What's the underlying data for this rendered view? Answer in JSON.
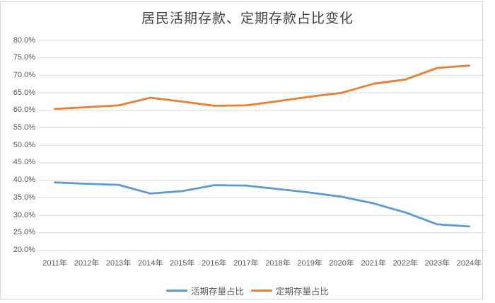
{
  "chart": {
    "title": "居民活期存款、定期存款占比变化"
  },
  "legend": {
    "series1_label": "活期存量占比",
    "series2_label": "定期存量占比"
  },
  "colors": {
    "series1": "#5B9BD5",
    "series2": "#ED7D31",
    "gridline": "#D9D9D9",
    "axis_text": "#595959",
    "title_text": "#404040",
    "frame_border": "#D9D9D9"
  },
  "chart_data": {
    "type": "line",
    "title": "居民活期存款、定期存款占比变化",
    "categories": [
      "2011年",
      "2012年",
      "2013年",
      "2014年",
      "2015年",
      "2016年",
      "2017年",
      "2018年",
      "2019年",
      "2020年",
      "2021年",
      "2022年",
      "2023年",
      "2024年"
    ],
    "series": [
      {
        "name": "活期存量占比",
        "color": "#5B9BD5",
        "values": [
          39.4,
          39.0,
          38.7,
          36.2,
          36.9,
          38.6,
          38.5,
          37.5,
          36.5,
          35.3,
          33.4,
          30.8,
          27.4,
          26.8
        ]
      },
      {
        "name": "定期存量占比",
        "color": "#ED7D31",
        "values": [
          60.4,
          60.9,
          61.4,
          63.6,
          62.5,
          61.3,
          61.4,
          62.6,
          63.9,
          65.0,
          67.6,
          68.8,
          72.1,
          72.8
        ]
      }
    ],
    "ylabel": "",
    "xlabel": "",
    "ylim": [
      20,
      80
    ],
    "y_tick_labels_top_to_bottom": [
      "80.0%",
      "75.0%",
      "70.0%",
      "65.0%",
      "60.0%",
      "55.0%",
      "50.0%",
      "45.0%",
      "40.0%",
      "35.0%",
      "30.0%",
      "25.0%",
      "20.0%"
    ],
    "y_tick_step": 5,
    "grid": true,
    "legend_position": "bottom"
  }
}
